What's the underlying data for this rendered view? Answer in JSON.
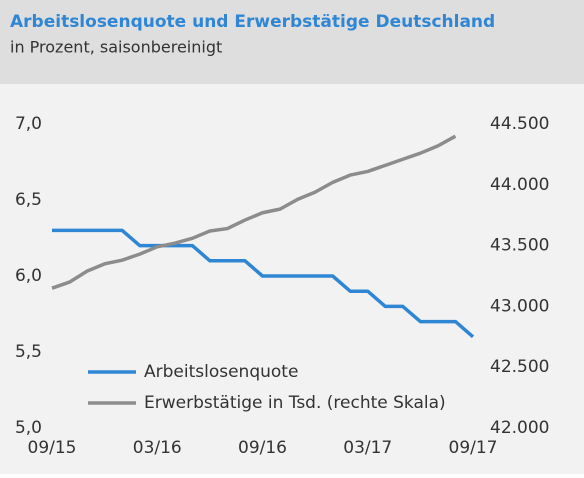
{
  "chart_data": {
    "type": "line",
    "title": "Arbeitslosenquote und Erwerbstätige Deutschland",
    "subtitle": "in Prozent, saisonbereinigt",
    "categories": [
      "09/15",
      null,
      null,
      null,
      null,
      null,
      "03/16",
      null,
      null,
      null,
      null,
      null,
      "09/16",
      null,
      null,
      null,
      null,
      null,
      "03/17",
      null,
      null,
      null,
      null,
      null,
      "09/17"
    ],
    "series": [
      {
        "name": "Arbeitslosenquote",
        "color": "#2f86d4",
        "axis": "y",
        "values": [
          6.3,
          6.3,
          6.3,
          6.3,
          6.3,
          6.2,
          6.2,
          6.2,
          6.2,
          6.1,
          6.1,
          6.1,
          6.0,
          6.0,
          6.0,
          6.0,
          6.0,
          5.9,
          5.9,
          5.8,
          5.8,
          5.7,
          5.7,
          5.7,
          5.6
        ]
      },
      {
        "name": "Erwerbstätige in Tsd. (rechte Skala)",
        "color": "#8c8c8c",
        "axis": "y2",
        "values": [
          43150,
          43200,
          43290,
          43350,
          43380,
          43430,
          43490,
          43520,
          43560,
          43620,
          43640,
          43710,
          43770,
          43800,
          43880,
          43940,
          44020,
          44080,
          44110,
          44160,
          44210,
          44260,
          44320,
          44400,
          null
        ]
      }
    ],
    "ylim": [
      5.0,
      7.0
    ],
    "yticks": [
      {
        "value": 5.0,
        "label": "5,0"
      },
      {
        "value": 5.5,
        "label": "5,5"
      },
      {
        "value": 6.0,
        "label": "6,0"
      },
      {
        "value": 6.5,
        "label": "6,5"
      },
      {
        "value": 7.0,
        "label": "7,0"
      }
    ],
    "y2lim": [
      42000,
      44500
    ],
    "y2ticks": [
      {
        "value": 42000,
        "label": "42.000"
      },
      {
        "value": 42500,
        "label": "42.500"
      },
      {
        "value": 43000,
        "label": "43.000"
      },
      {
        "value": 43500,
        "label": "43.500"
      },
      {
        "value": 44000,
        "label": "44.000"
      },
      {
        "value": 44500,
        "label": "44.500"
      }
    ],
    "legend": "lower left",
    "grid": false
  }
}
